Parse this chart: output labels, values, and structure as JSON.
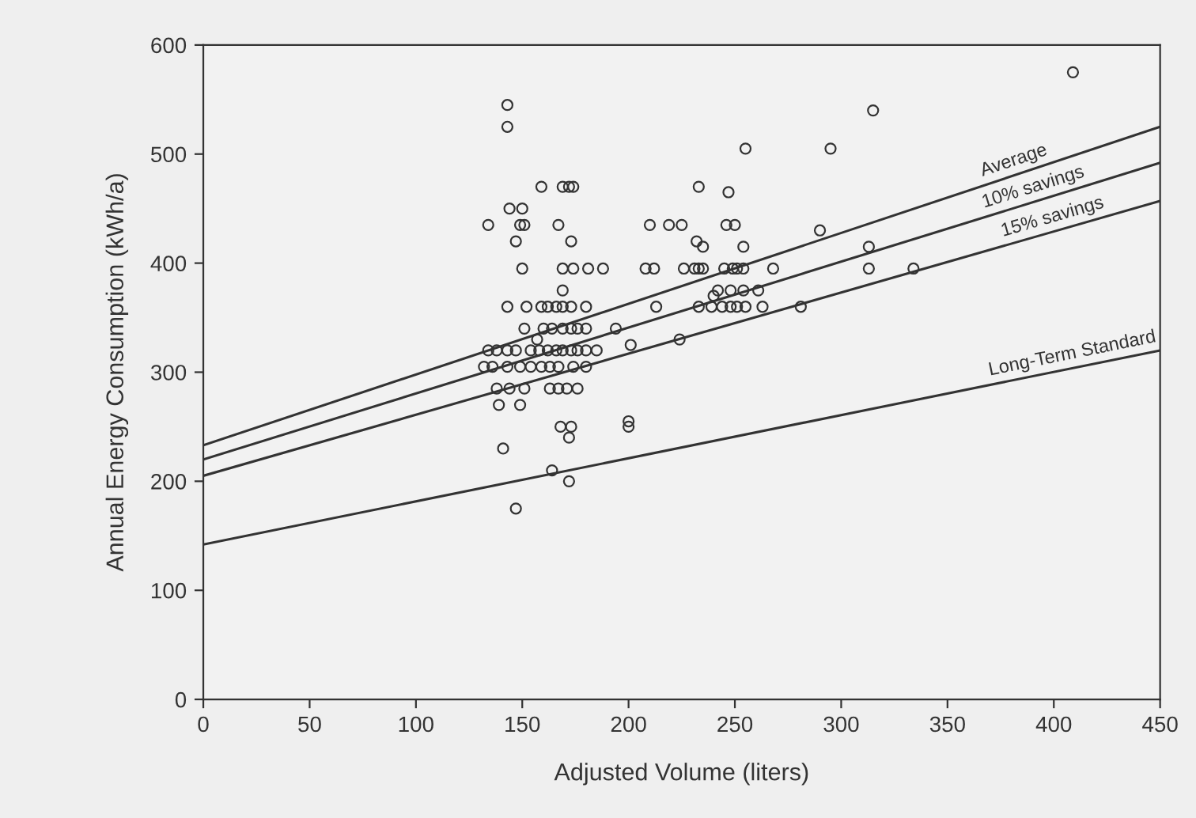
{
  "chart_data": {
    "type": "scatter",
    "xlabel": "Adjusted Volume (liters)",
    "ylabel": "Annual Energy Consumption (kWh/a)",
    "xlim": [
      0,
      450
    ],
    "xticks": [
      0,
      50,
      100,
      150,
      200,
      250,
      300,
      350,
      400,
      450
    ],
    "ylim": [
      0,
      600
    ],
    "yticks": [
      0,
      100,
      200,
      300,
      400,
      500,
      600
    ],
    "grid": false,
    "series": [
      {
        "color": "#333333",
        "marker": "circle",
        "x": [
          143,
          143,
          409,
          315,
          255,
          295,
          159,
          169,
          172,
          174,
          233,
          247,
          144,
          150,
          134,
          149,
          151,
          167,
          210,
          219,
          225,
          246,
          250,
          290,
          147,
          173,
          232,
          235,
          254,
          313,
          150,
          169,
          174,
          181,
          188,
          208,
          212,
          226,
          231,
          233,
          235,
          245,
          249,
          251,
          254,
          268,
          313,
          334,
          169,
          240,
          242,
          248,
          254,
          261,
          143,
          152,
          159,
          162,
          166,
          169,
          173,
          180,
          213,
          233,
          239,
          244,
          248,
          251,
          255,
          263,
          281,
          151,
          160,
          164,
          169,
          173,
          176,
          180,
          194,
          157,
          134,
          138,
          143,
          147,
          154,
          158,
          162,
          166,
          169,
          173,
          176,
          180,
          185,
          201,
          224,
          132,
          136,
          143,
          149,
          154,
          159,
          163,
          167,
          174,
          180,
          138,
          144,
          151,
          163,
          167,
          171,
          176,
          139,
          149,
          168,
          173,
          172,
          200,
          200,
          141,
          164,
          172,
          147
        ],
        "values": [
          545,
          525,
          575,
          540,
          505,
          505,
          470,
          470,
          470,
          470,
          470,
          465,
          450,
          450,
          435,
          435,
          435,
          435,
          435,
          435,
          435,
          435,
          435,
          430,
          420,
          420,
          420,
          415,
          415,
          415,
          395,
          395,
          395,
          395,
          395,
          395,
          395,
          395,
          395,
          395,
          395,
          395,
          395,
          395,
          395,
          395,
          395,
          395,
          375,
          370,
          375,
          375,
          375,
          375,
          360,
          360,
          360,
          360,
          360,
          360,
          360,
          360,
          360,
          360,
          360,
          360,
          360,
          360,
          360,
          360,
          360,
          340,
          340,
          340,
          340,
          340,
          340,
          340,
          340,
          330,
          320,
          320,
          320,
          320,
          320,
          320,
          320,
          320,
          320,
          320,
          320,
          320,
          320,
          325,
          330,
          305,
          305,
          305,
          305,
          305,
          305,
          305,
          305,
          305,
          305,
          285,
          285,
          285,
          285,
          285,
          285,
          285,
          270,
          270,
          250,
          250,
          240,
          255,
          250,
          230,
          210,
          200,
          175
        ]
      },
      {
        "type": "line",
        "name": "Average",
        "color": "#333333",
        "marker": "none",
        "x": [
          0,
          450
        ],
        "values": [
          233,
          525
        ]
      },
      {
        "type": "line",
        "name": "10% savings",
        "color": "#333333",
        "marker": "none",
        "x": [
          0,
          450
        ],
        "values": [
          220,
          492
        ]
      },
      {
        "type": "line",
        "name": "15% savings",
        "color": "#333333",
        "marker": "none",
        "x": [
          0,
          450
        ],
        "values": [
          205,
          457
        ]
      },
      {
        "type": "line",
        "name": "Long-Term Standard",
        "color": "#333333",
        "marker": "none",
        "x": [
          0,
          450
        ],
        "values": [
          142,
          320
        ]
      }
    ]
  }
}
